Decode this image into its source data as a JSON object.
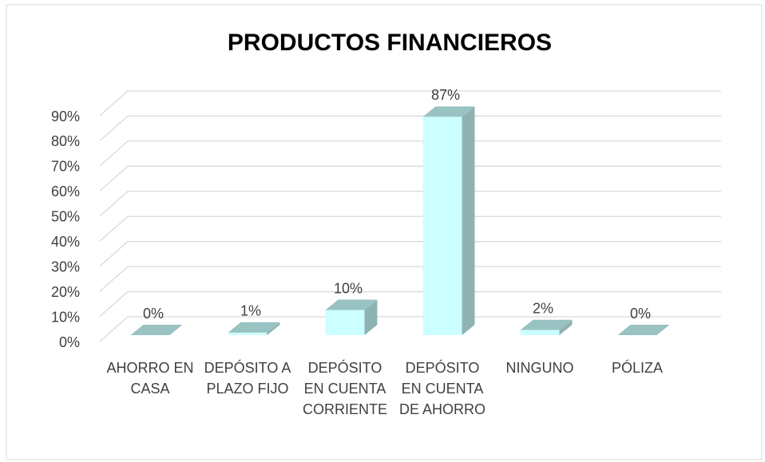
{
  "chart_data": {
    "type": "bar3d",
    "title": "PRODUCTOS FINANCIEROS",
    "categories": [
      "AHORRO EN CASA",
      "DEPÓSITO A PLAZO FIJO",
      "DEPÓSITO EN CUENTA CORRIENTE",
      "DEPÓSITO EN CUENTA DE AHORRO",
      "NINGUNO",
      "PÓLIZA"
    ],
    "values": [
      0,
      1,
      10,
      87,
      2,
      0
    ],
    "value_labels": [
      "0%",
      "1%",
      "10%",
      "87%",
      "2%",
      "0%"
    ],
    "color": "#ccffff",
    "ylim": [
      0,
      90
    ],
    "yticks": [
      {
        "value": 0,
        "label": "0%"
      },
      {
        "value": 10,
        "label": "10%"
      },
      {
        "value": 20,
        "label": "20%"
      },
      {
        "value": 30,
        "label": "30%"
      },
      {
        "value": 40,
        "label": "40%"
      },
      {
        "value": 50,
        "label": "50%"
      },
      {
        "value": 60,
        "label": "60%"
      },
      {
        "value": 70,
        "label": "70%"
      },
      {
        "value": 80,
        "label": "80%"
      },
      {
        "value": 90,
        "label": "90%"
      }
    ],
    "grid": true
  }
}
